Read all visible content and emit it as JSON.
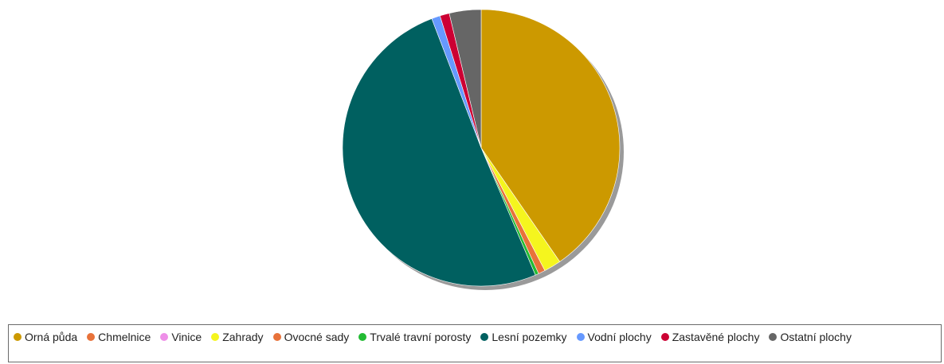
{
  "chart_data": {
    "type": "pie",
    "title": "",
    "categories": [
      "Orná půda",
      "Chmelnice",
      "Vinice",
      "Zahrady",
      "Ovocné sady",
      "Trvalé travní porosty",
      "Lesní pozemky",
      "Vodní plochy",
      "Zastavěné plochy",
      "Ostatní plochy"
    ],
    "values": [
      40.4,
      0,
      0,
      2.0,
      0.8,
      0.4,
      50.6,
      1.0,
      1.1,
      3.7
    ],
    "unit": "%",
    "colors": [
      "#cc9900",
      "#e8723a",
      "#ee8fe8",
      "#f5f51e",
      "#e8723a",
      "#22bb33",
      "#006060",
      "#6699ff",
      "#cc0033",
      "#666666"
    ],
    "legend_position": "bottom",
    "start_angle_deg": 0,
    "direction": "clockwise",
    "shadow": true
  }
}
